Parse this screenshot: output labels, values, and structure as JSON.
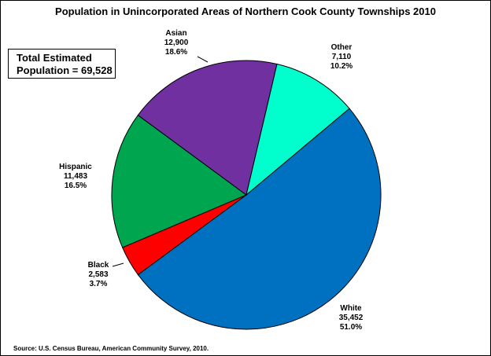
{
  "title": "Population in Unincorporated Areas of Northern Cook County Townships 2010",
  "total_box": {
    "line1": "Total Estimated",
    "line2": "Population = 69,528"
  },
  "source": "Source: U.S. Census Bureau, American Community Survey, 2010.",
  "chart_data": {
    "type": "pie",
    "title": "Population in Unincorporated Areas of Northern Cook County Townships 2010",
    "total": 69528,
    "slices": [
      {
        "name": "White",
        "value": 35452,
        "value_label": "35,452",
        "percent_label": "51.0%",
        "color": "#0070C0"
      },
      {
        "name": "Black",
        "value": 2583,
        "value_label": "2,583",
        "percent_label": "3.7%",
        "color": "#FF0000"
      },
      {
        "name": "Hispanic",
        "value": 11483,
        "value_label": "11,483",
        "percent_label": "16.5%",
        "color": "#00A550"
      },
      {
        "name": "Asian",
        "value": 12900,
        "value_label": "12,900",
        "percent_label": "18.6%",
        "color": "#7030A0"
      },
      {
        "name": "Other",
        "value": 7110,
        "value_label": "7,110",
        "percent_label": "10.2%",
        "color": "#00FFCC"
      }
    ]
  }
}
